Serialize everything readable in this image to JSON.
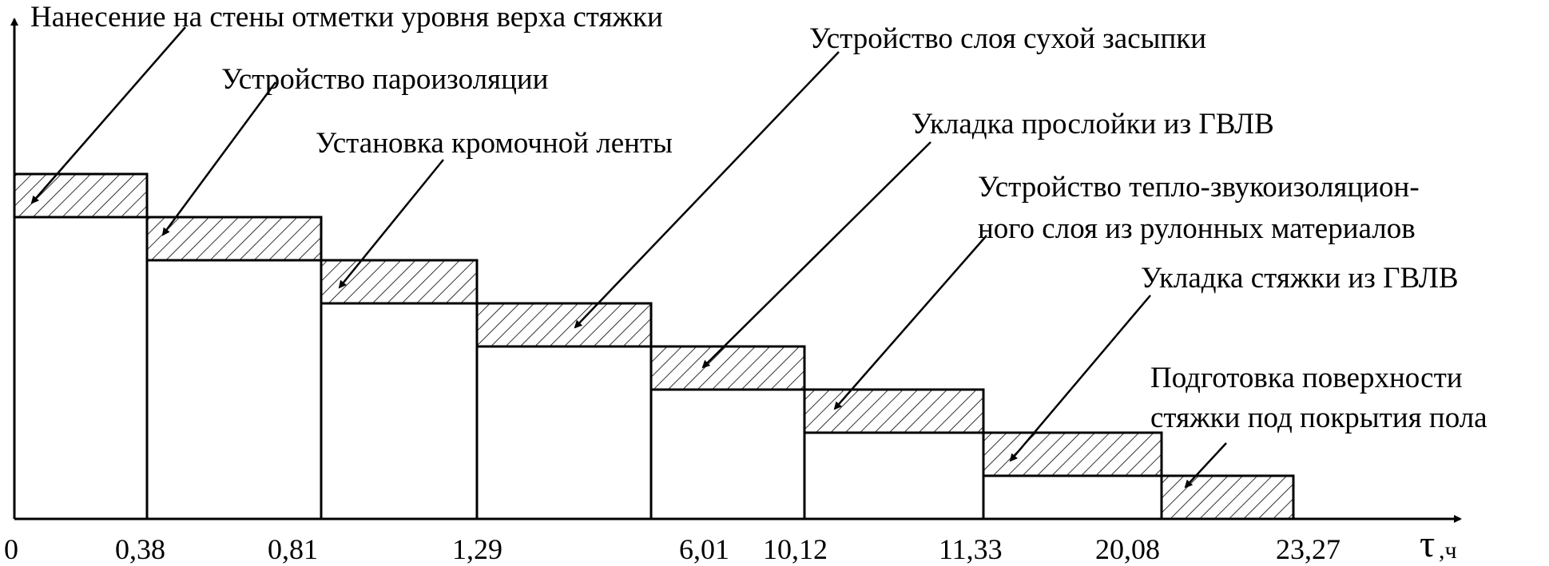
{
  "axis": {
    "time_symbol": "τ",
    "time_unit": ",ч",
    "ticks": [
      "0",
      "0,38",
      "0,81",
      "1,29",
      "6,01",
      "10,12",
      "11,33",
      "20,08",
      "23,27"
    ]
  },
  "operations": [
    "Нанесение на стены отметки уровня верха стяжки",
    "Устройство пароизоляции",
    "Установка кромочной ленты",
    "Устройство слоя сухой засыпки",
    "Укладка прослойки из ГВЛВ",
    "Устройство тепло-звукоизоляцион-",
    "ного слоя из рулонных материалов",
    "Укладка стяжки из ГВЛВ",
    "Подготовка поверхности",
    "стяжки под покрытия пола"
  ],
  "step_count": 8
}
